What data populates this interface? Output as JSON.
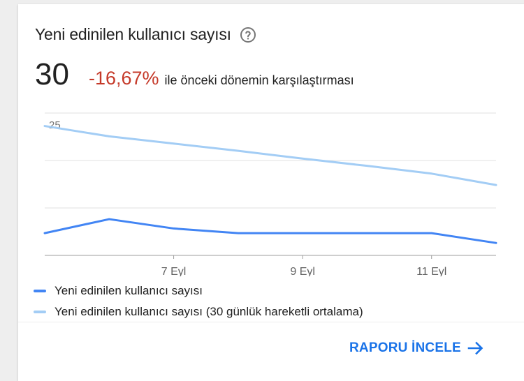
{
  "card": {
    "title": "Yeni edinilen kullanıcı sayısı",
    "metric_value": "30",
    "metric_delta": "-16,67%",
    "metric_desc": "ile önceki dönemin karşılaştırması",
    "footer_link": "RAPORU İNCELE"
  },
  "colors": {
    "delta": "#c53929",
    "series_primary": "#4285f4",
    "series_moving_avg": "#a3cdf5",
    "link": "#1a73e8"
  },
  "icons": {
    "help": "help-circle-icon",
    "arrow": "arrow-right-icon"
  },
  "chart_data": {
    "type": "line",
    "x": [
      "5 Eyl",
      "6 Eyl",
      "7 Eyl",
      "8 Eyl",
      "9 Eyl",
      "10 Eyl",
      "11 Eyl",
      "12 Eyl"
    ],
    "x_tick_labels": [
      "7 Eyl",
      "9 Eyl",
      "11 Eyl"
    ],
    "y_tick_labels": [
      "25"
    ],
    "ylim": [
      0,
      27.5
    ],
    "grid": true,
    "legend_position": "bottom",
    "series": [
      {
        "name": "Yeni edinilen kullanıcı sayısı",
        "values": [
          4.3,
          7.0,
          5.2,
          4.3,
          4.3,
          4.3,
          4.3,
          2.4
        ]
      },
      {
        "name": "Yeni edinilen kullanıcı sayısı (30 günlük hareketli ortalama)",
        "values": [
          25.0,
          23.0,
          21.6,
          20.2,
          18.7,
          17.3,
          15.8,
          13.6
        ]
      }
    ]
  }
}
